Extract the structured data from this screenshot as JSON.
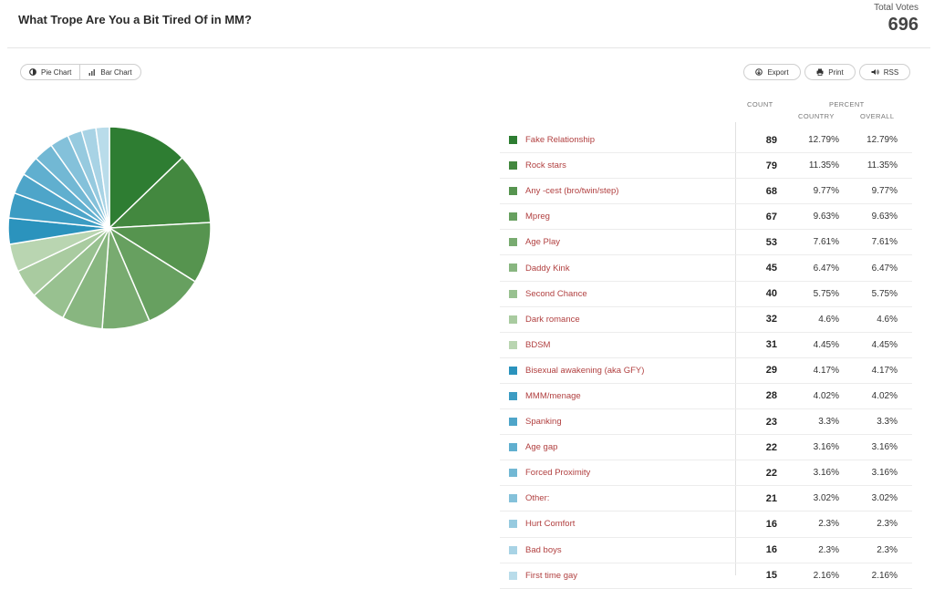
{
  "header": {
    "title": "What Trope Are You a Bit Tired Of in MM?",
    "total_votes_label": "Total Votes",
    "total_votes": "696"
  },
  "view_toggle": {
    "pie_label": "Pie Chart",
    "bar_label": "Bar Chart",
    "active": "pie"
  },
  "actions": {
    "export_label": "Export",
    "print_label": "Print",
    "rss_label": "RSS"
  },
  "table_headers": {
    "count": "COUNT",
    "percent": "PERCENT",
    "country": "COUNTRY",
    "overall": "OVERALL"
  },
  "chart_data": {
    "type": "pie",
    "title": "What Trope Are You a Bit Tired Of in MM?",
    "total": 696,
    "slices": [
      {
        "label": "Fake Relationship",
        "value": 89,
        "country_pct": "12.79%",
        "overall_pct": "12.79%",
        "color": "#2e7d32"
      },
      {
        "label": "Rock stars",
        "value": 79,
        "country_pct": "11.35%",
        "overall_pct": "11.35%",
        "color": "#43883f"
      },
      {
        "label": "Any -cest (bro/twin/step)",
        "value": 68,
        "country_pct": "9.77%",
        "overall_pct": "9.77%",
        "color": "#56944f"
      },
      {
        "label": "Mpreg",
        "value": 67,
        "country_pct": "9.63%",
        "overall_pct": "9.63%",
        "color": "#67a060"
      },
      {
        "label": "Age Play",
        "value": 53,
        "country_pct": "7.61%",
        "overall_pct": "7.61%",
        "color": "#78ab70"
      },
      {
        "label": "Daddy Kink",
        "value": 45,
        "country_pct": "6.47%",
        "overall_pct": "6.47%",
        "color": "#88b680"
      },
      {
        "label": "Second Chance",
        "value": 40,
        "country_pct": "5.75%",
        "overall_pct": "5.75%",
        "color": "#98c190"
      },
      {
        "label": "Dark romance",
        "value": 32,
        "country_pct": "4.6%",
        "overall_pct": "4.6%",
        "color": "#a9cba0"
      },
      {
        "label": "BDSM",
        "value": 31,
        "country_pct": "4.45%",
        "overall_pct": "4.45%",
        "color": "#b9d5b1"
      },
      {
        "label": "Bisexual awakening (aka GFY)",
        "value": 29,
        "country_pct": "4.17%",
        "overall_pct": "4.17%",
        "color": "#2b93bd"
      },
      {
        "label": "MMM/menage",
        "value": 28,
        "country_pct": "4.02%",
        "overall_pct": "4.02%",
        "color": "#3c9cc3"
      },
      {
        "label": "Spanking",
        "value": 23,
        "country_pct": "3.3%",
        "overall_pct": "3.3%",
        "color": "#4ea5c9"
      },
      {
        "label": "Age gap",
        "value": 22,
        "country_pct": "3.16%",
        "overall_pct": "3.16%",
        "color": "#60afcf"
      },
      {
        "label": "Forced Proximity",
        "value": 22,
        "country_pct": "3.16%",
        "overall_pct": "3.16%",
        "color": "#72b8d4"
      },
      {
        "label": "Other:",
        "value": 21,
        "country_pct": "3.02%",
        "overall_pct": "3.02%",
        "color": "#84c1da"
      },
      {
        "label": "Hurt Comfort",
        "value": 16,
        "country_pct": "2.3%",
        "overall_pct": "2.3%",
        "color": "#96cadf"
      },
      {
        "label": "Bad boys",
        "value": 16,
        "country_pct": "2.3%",
        "overall_pct": "2.3%",
        "color": "#a8d3e5"
      },
      {
        "label": "First time gay",
        "value": 15,
        "country_pct": "2.16%",
        "overall_pct": "2.16%",
        "color": "#b9dcea"
      }
    ]
  }
}
